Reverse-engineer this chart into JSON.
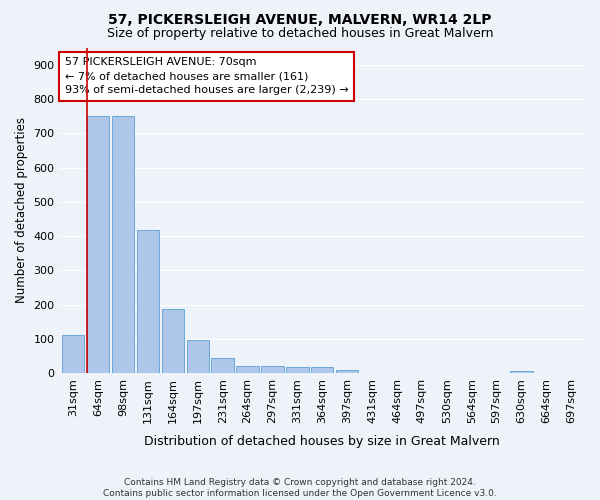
{
  "title": "57, PICKERSLEIGH AVENUE, MALVERN, WR14 2LP",
  "subtitle": "Size of property relative to detached houses in Great Malvern",
  "xlabel": "Distribution of detached houses by size in Great Malvern",
  "ylabel": "Number of detached properties",
  "bar_values": [
    112,
    750,
    750,
    418,
    188,
    97,
    46,
    22,
    22,
    20,
    20,
    10,
    0,
    0,
    0,
    0,
    0,
    0,
    8,
    0,
    0
  ],
  "bar_labels": [
    "31sqm",
    "64sqm",
    "98sqm",
    "131sqm",
    "164sqm",
    "197sqm",
    "231sqm",
    "264sqm",
    "297sqm",
    "331sqm",
    "364sqm",
    "397sqm",
    "431sqm",
    "464sqm",
    "497sqm",
    "530sqm",
    "564sqm",
    "597sqm",
    "630sqm",
    "664sqm",
    "697sqm"
  ],
  "bar_color": "#aec6e8",
  "bar_edge_color": "#5a9fd4",
  "vline_color": "#cc0000",
  "annotation_text": "57 PICKERSLEIGH AVENUE: 70sqm\n← 7% of detached houses are smaller (161)\n93% of semi-detached houses are larger (2,239) →",
  "annotation_box_color": "#ffffff",
  "annotation_box_edge_color": "#cc0000",
  "ylim": [
    0,
    950
  ],
  "yticks": [
    0,
    100,
    200,
    300,
    400,
    500,
    600,
    700,
    800,
    900
  ],
  "footnote": "Contains HM Land Registry data © Crown copyright and database right 2024.\nContains public sector information licensed under the Open Government Licence v3.0.",
  "bg_color": "#eef2f9",
  "grid_color": "#ffffff",
  "title_fontsize": 10,
  "subtitle_fontsize": 9,
  "xlabel_fontsize": 9,
  "ylabel_fontsize": 8.5,
  "tick_fontsize": 8,
  "annotation_fontsize": 8,
  "footnote_fontsize": 6.5
}
